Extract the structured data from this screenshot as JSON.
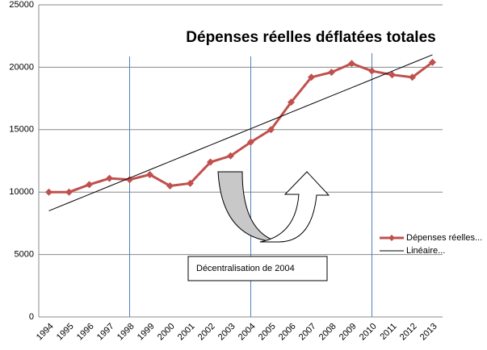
{
  "chart_data": {
    "type": "line",
    "title": "Dépenses réelles déflatées totales",
    "annotation": "Décentralisation de 2004",
    "categories": [
      "1994",
      "1995",
      "1996",
      "1997",
      "1998",
      "1999",
      "2000",
      "2001",
      "2002",
      "2003",
      "2004",
      "2005",
      "2006",
      "2007",
      "2008",
      "2009",
      "2010",
      "2011",
      "2012",
      "2013"
    ],
    "series": [
      {
        "name": "Dépenses réelles...",
        "color": "#c0504d",
        "marker": "diamond",
        "values": [
          10000,
          10000,
          10600,
          11100,
          11000,
          11400,
          10500,
          10700,
          12400,
          12900,
          14000,
          15000,
          17200,
          19200,
          19600,
          20300,
          19700,
          19400,
          19200,
          20400
        ]
      },
      {
        "name": "Linéaire...",
        "color": "#000000",
        "marker": "none",
        "values": [
          8500,
          9158,
          9816,
          10474,
          11132,
          11789,
          12447,
          13105,
          13763,
          14421,
          15079,
          15737,
          16395,
          17053,
          17711,
          18368,
          19026,
          19684,
          20342,
          21000
        ]
      }
    ],
    "ylim": [
      0,
      25000
    ],
    "yticks": [
      0,
      5000,
      10000,
      15000,
      20000,
      25000
    ],
    "grid": true,
    "legend": "right"
  }
}
